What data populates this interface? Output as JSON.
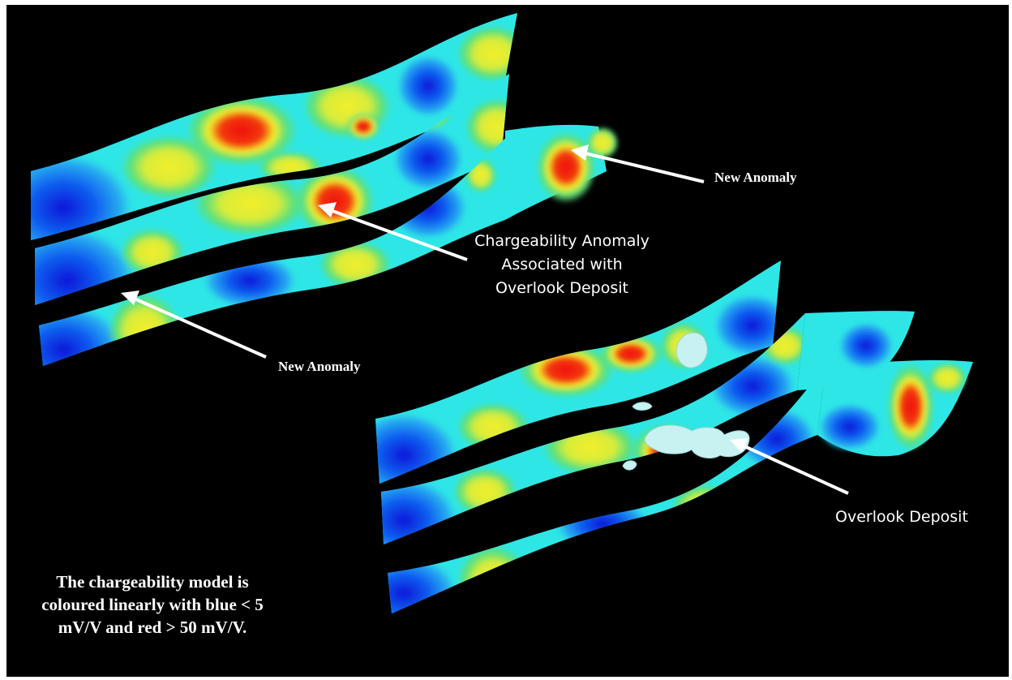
{
  "colors": {
    "background": "#000000",
    "blue": "#0a1ee0",
    "cyan": "#2ee6e6",
    "green": "#5ee07a",
    "yellow": "#f2ee2a",
    "red": "#f01010",
    "deposit": "#c8f2f2"
  },
  "labels": {
    "new_anomaly_right": "New Anomaly",
    "chargeability_anomaly": [
      "Chargeability Anomaly",
      "Associated with",
      "Overlook Deposit"
    ],
    "new_anomaly_left": "New Anomaly",
    "overlook_deposit": "Overlook Deposit"
  },
  "caption": [
    "The chargeability model is",
    "coloured linearly with blue < 5",
    "mV/V and red > 50 mV/V."
  ]
}
